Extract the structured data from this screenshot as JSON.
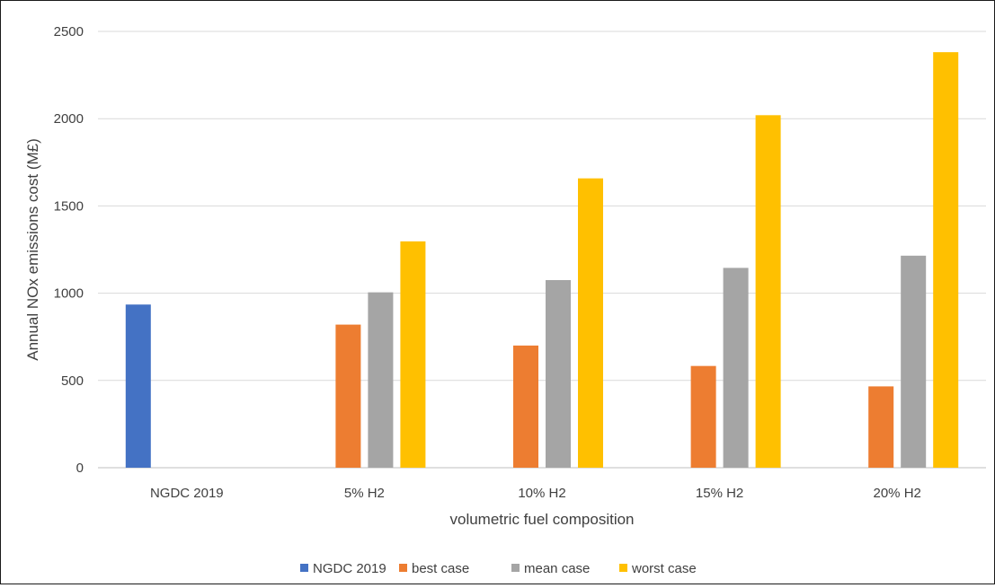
{
  "chart_data": {
    "type": "bar",
    "categories": [
      "NGDC 2019",
      "5% H2",
      "10% H2",
      "15% H2",
      "20% H2"
    ],
    "series": [
      {
        "name": "NGDC 2019",
        "color": "#4472C4",
        "values": [
          935,
          null,
          null,
          null,
          null
        ]
      },
      {
        "name": "best case",
        "color": "#ED7D31",
        "values": [
          null,
          820,
          700,
          583,
          466
        ]
      },
      {
        "name": "mean case",
        "color": "#A5A5A5",
        "values": [
          null,
          1005,
          1075,
          1145,
          1215
        ]
      },
      {
        "name": "worst case",
        "color": "#FFC000",
        "values": [
          null,
          1297,
          1658,
          2020,
          2381
        ]
      }
    ],
    "title": "",
    "xlabel": "volumetric fuel composition",
    "ylabel": "Annual NOx emissions cost (M£)",
    "ylim": [
      0,
      2500
    ],
    "yticks": [
      0,
      500,
      1000,
      1500,
      2000,
      2500
    ],
    "grid": true,
    "legend_position": "bottom"
  }
}
